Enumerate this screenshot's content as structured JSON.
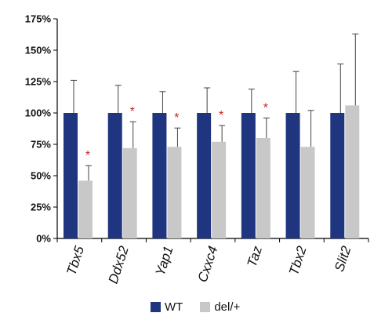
{
  "chart_data": {
    "type": "bar",
    "categories": [
      "Tbx5",
      "Ddx52",
      "Yap1",
      "Cxxc4",
      "Taz",
      "Tbx2",
      "Slit2"
    ],
    "series": [
      {
        "name": "WT",
        "color": "#1f3580",
        "values": [
          100,
          100,
          100,
          100,
          100,
          100,
          100
        ],
        "error": [
          26,
          22,
          17,
          20,
          19,
          33,
          39
        ]
      },
      {
        "name": "del/+",
        "color": "#c8c8c8",
        "values": [
          46,
          72,
          73,
          77,
          80,
          73,
          106
        ],
        "error": [
          12,
          21,
          15,
          13,
          16,
          29,
          57
        ]
      }
    ],
    "significant": [
      true,
      true,
      true,
      true,
      true,
      false,
      false
    ],
    "significance_marker": "*",
    "significance_color": "#cc2222",
    "ylim": [
      0,
      175
    ],
    "yticks": [
      "0%",
      "25%",
      "50%",
      "75%",
      "100%",
      "125%",
      "150%",
      "175%"
    ],
    "ytick_values": [
      0,
      25,
      50,
      75,
      100,
      125,
      150,
      175
    ],
    "legend_position": "bottom"
  },
  "legend": {
    "wt_label": "WT",
    "del_label": "del/+"
  }
}
